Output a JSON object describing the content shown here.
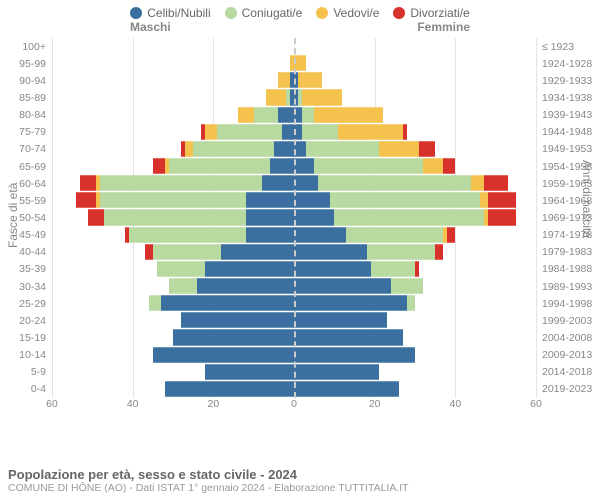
{
  "legend": [
    {
      "label": "Celibi/Nubili",
      "color": "#3b6fa0"
    },
    {
      "label": "Coniugati/e",
      "color": "#b8daa0"
    },
    {
      "label": "Vedovi/e",
      "color": "#f4c24d"
    },
    {
      "label": "Divorziati/e",
      "color": "#d8302a"
    }
  ],
  "header_m": "Maschi",
  "header_f": "Femmine",
  "y_label_left": "Fasce di età",
  "y_label_right": "Anni di nascita",
  "x_ticks": [
    60,
    40,
    20,
    0,
    20,
    40,
    60
  ],
  "x_max": 60,
  "age_labels": [
    "100+",
    "95-99",
    "90-94",
    "85-89",
    "80-84",
    "75-79",
    "70-74",
    "65-69",
    "60-64",
    "55-59",
    "50-54",
    "45-49",
    "40-44",
    "35-39",
    "30-34",
    "25-29",
    "20-24",
    "15-19",
    "10-14",
    "5-9",
    "0-4"
  ],
  "birth_labels": [
    "≤ 1923",
    "1924-1928",
    "1929-1933",
    "1934-1938",
    "1939-1943",
    "1944-1948",
    "1949-1953",
    "1954-1958",
    "1959-1963",
    "1964-1968",
    "1969-1973",
    "1974-1978",
    "1979-1983",
    "1984-1988",
    "1989-1993",
    "1994-1998",
    "1999-2003",
    "2004-2008",
    "2009-2013",
    "2014-2018",
    "2019-2023"
  ],
  "series_colors": [
    "#3b6fa0",
    "#b8daa0",
    "#f4c24d",
    "#d8302a"
  ],
  "male": [
    [
      0,
      0,
      0,
      0
    ],
    [
      0,
      0,
      1,
      0
    ],
    [
      1,
      0,
      3,
      0
    ],
    [
      1,
      1,
      5,
      0
    ],
    [
      4,
      6,
      4,
      0
    ],
    [
      3,
      16,
      3,
      1
    ],
    [
      5,
      20,
      2,
      1
    ],
    [
      6,
      25,
      1,
      3
    ],
    [
      8,
      40,
      1,
      4
    ],
    [
      12,
      36,
      1,
      5
    ],
    [
      12,
      35,
      0,
      4
    ],
    [
      12,
      29,
      0,
      1
    ],
    [
      18,
      17,
      0,
      2
    ],
    [
      22,
      12,
      0,
      0
    ],
    [
      24,
      7,
      0,
      0
    ],
    [
      33,
      3,
      0,
      0
    ],
    [
      28,
      0,
      0,
      0
    ],
    [
      30,
      0,
      0,
      0
    ],
    [
      35,
      0,
      0,
      0
    ],
    [
      22,
      0,
      0,
      0
    ],
    [
      32,
      0,
      0,
      0
    ]
  ],
  "female": [
    [
      0,
      0,
      0,
      0
    ],
    [
      0,
      0,
      3,
      0
    ],
    [
      1,
      0,
      6,
      0
    ],
    [
      1,
      1,
      10,
      0
    ],
    [
      2,
      3,
      17,
      0
    ],
    [
      2,
      9,
      16,
      1
    ],
    [
      3,
      18,
      10,
      4
    ],
    [
      5,
      27,
      5,
      3
    ],
    [
      6,
      38,
      3,
      6
    ],
    [
      9,
      37,
      2,
      7
    ],
    [
      10,
      37,
      1,
      7
    ],
    [
      13,
      24,
      1,
      2
    ],
    [
      18,
      17,
      0,
      2
    ],
    [
      19,
      11,
      0,
      1
    ],
    [
      24,
      8,
      0,
      0
    ],
    [
      28,
      2,
      0,
      0
    ],
    [
      23,
      0,
      0,
      0
    ],
    [
      27,
      0,
      0,
      0
    ],
    [
      30,
      0,
      0,
      0
    ],
    [
      21,
      0,
      0,
      0
    ],
    [
      26,
      0,
      0,
      0
    ]
  ],
  "title": "Popolazione per età, sesso e stato civile - 2024",
  "subtitle": "COMUNE DI HÔNE (AO) - Dati ISTAT 1° gennaio 2024 - Elaborazione TUTTITALIA.IT",
  "fontsize_labels": 10.5,
  "background_color": "#ffffff",
  "grid_color": "#eeeeee"
}
